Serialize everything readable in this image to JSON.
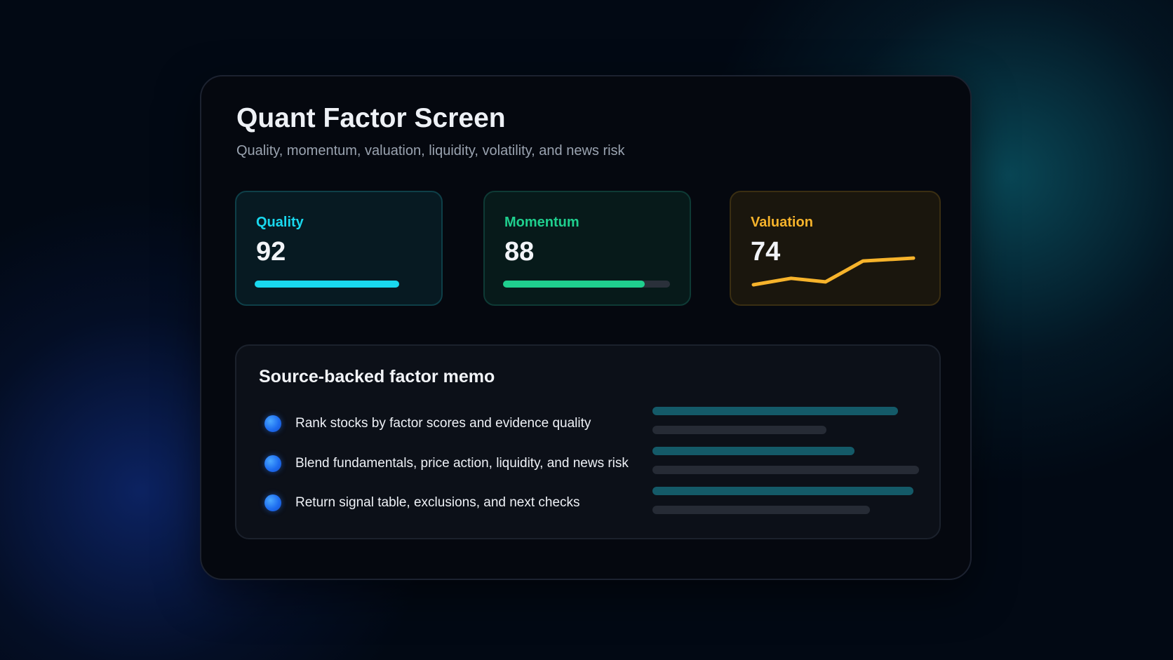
{
  "header": {
    "title": "Quant Factor Screen",
    "subtitle": "Quality, momentum, valuation, liquidity, volatility, and news risk"
  },
  "cards": [
    {
      "label": "Quality",
      "value": "92",
      "color": "#19d8ee",
      "progress": 1.0
    },
    {
      "label": "Momentum",
      "value": "88",
      "color": "#1fcf8e",
      "progress": 0.85
    },
    {
      "label": "Valuation",
      "value": "74",
      "color": "#f6b32b",
      "trend": [
        0,
        9,
        4,
        33,
        37
      ]
    }
  ],
  "memo": {
    "title": "Source-backed factor memo",
    "items": [
      "Rank stocks by factor scores and evidence quality",
      "Blend fundamentals, price action, liquidity, and news risk",
      "Return signal table, exclusions, and next checks"
    ]
  }
}
